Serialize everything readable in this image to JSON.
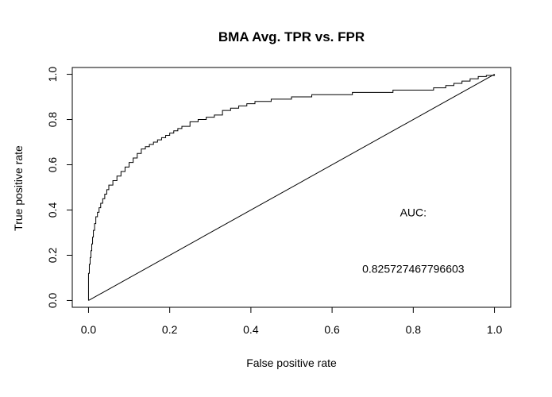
{
  "chart_data": {
    "type": "line",
    "title": "BMA Avg. TPR vs. FPR",
    "xlabel": "False positive rate",
    "ylabel": "True positive rate",
    "xlim": [
      -0.04,
      1.04
    ],
    "ylim": [
      -0.03,
      1.03
    ],
    "grid": false,
    "x_ticks": [
      0.0,
      0.2,
      0.4,
      0.6,
      0.8,
      1.0
    ],
    "y_ticks": [
      0.0,
      0.2,
      0.4,
      0.6,
      0.8,
      1.0
    ],
    "x_tick_labels": [
      "0.0",
      "0.2",
      "0.4",
      "0.6",
      "0.8",
      "1.0"
    ],
    "y_tick_labels": [
      "0.0",
      "0.2",
      "0.4",
      "0.6",
      "0.8",
      "1.0"
    ],
    "series": [
      {
        "values_x": [
          0.0,
          0.0,
          0.002,
          0.004,
          0.006,
          0.008,
          0.01,
          0.012,
          0.015,
          0.018,
          0.022,
          0.026,
          0.03,
          0.035,
          0.04,
          0.045,
          0.05,
          0.06,
          0.07,
          0.08,
          0.09,
          0.1,
          0.11,
          0.12,
          0.13,
          0.14,
          0.15,
          0.16,
          0.17,
          0.18,
          0.19,
          0.2,
          0.21,
          0.22,
          0.23,
          0.25,
          0.27,
          0.29,
          0.31,
          0.33,
          0.35,
          0.37,
          0.39,
          0.41,
          0.43,
          0.45,
          0.5,
          0.55,
          0.6,
          0.65,
          0.7,
          0.75,
          0.8,
          0.85,
          0.88,
          0.9,
          0.92,
          0.94,
          0.96,
          0.98,
          1.0
        ],
        "values_y": [
          0.0,
          0.12,
          0.16,
          0.19,
          0.22,
          0.25,
          0.28,
          0.31,
          0.34,
          0.37,
          0.39,
          0.41,
          0.43,
          0.45,
          0.47,
          0.49,
          0.51,
          0.53,
          0.55,
          0.57,
          0.59,
          0.61,
          0.63,
          0.65,
          0.67,
          0.68,
          0.69,
          0.7,
          0.71,
          0.72,
          0.73,
          0.74,
          0.75,
          0.76,
          0.77,
          0.79,
          0.8,
          0.81,
          0.82,
          0.84,
          0.85,
          0.86,
          0.87,
          0.88,
          0.88,
          0.89,
          0.9,
          0.91,
          0.91,
          0.92,
          0.92,
          0.93,
          0.93,
          0.94,
          0.95,
          0.96,
          0.97,
          0.98,
          0.99,
          0.995,
          1.0
        ]
      },
      {
        "values_x": [
          0.0,
          1.0
        ],
        "values_y": [
          0.0,
          1.0
        ]
      }
    ],
    "annotations": [
      {
        "text": "AUC:",
        "x": 0.8,
        "y": 0.39
      },
      {
        "text": "0.825727467796603",
        "x": 0.8,
        "y": 0.14
      }
    ]
  }
}
